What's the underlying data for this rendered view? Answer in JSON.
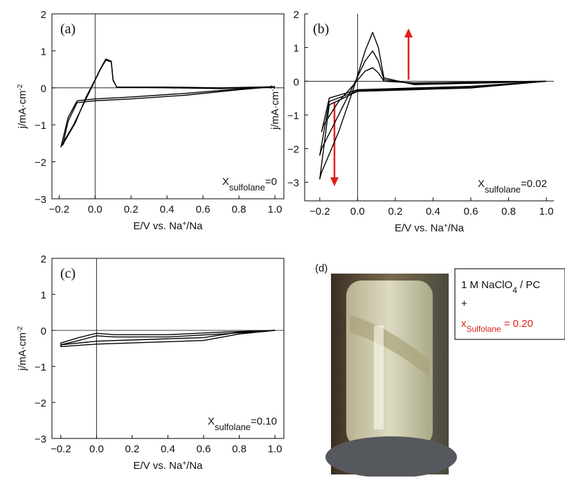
{
  "chart_data": [
    {
      "type": "line",
      "panel_label": "(a)",
      "annotation": [
        "X",
        "sulfolane",
        "=0"
      ],
      "xlabel": [
        "E/V vs. Na",
        "+",
        "/Na"
      ],
      "ylabel": [
        "j/mA·cm",
        "-2"
      ],
      "frame": true,
      "xlim": [
        -0.24,
        1.05
      ],
      "ylim": [
        -3,
        2
      ],
      "xticks": [
        {
          "value": -0.2,
          "label": "−0.2"
        },
        {
          "value": 0,
          "label": "0.0"
        },
        0.2,
        0.4,
        0.6,
        0.8,
        {
          "value": 1,
          "label": "1.0"
        }
      ],
      "yticks": [
        {
          "value": -3,
          "label": "−3"
        },
        {
          "value": -2,
          "label": "−2"
        },
        {
          "value": -1,
          "label": "−1"
        },
        0,
        1,
        2
      ],
      "series": [
        {
          "color": "#000000",
          "x": [
            1.0,
            0.8,
            0.5,
            0.2,
            0.0,
            -0.1,
            -0.15,
            -0.19,
            -0.18,
            -0.12,
            -0.05,
            0.0,
            0.03,
            0.06,
            0.09,
            0.1,
            0.12,
            0.4,
            0.7,
            1.0
          ],
          "values": [
            0.03,
            -0.03,
            -0.15,
            -0.25,
            -0.3,
            -0.35,
            -0.8,
            -1.6,
            -1.5,
            -1.0,
            -0.3,
            0.2,
            0.5,
            0.75,
            0.7,
            0.2,
            0.02,
            0.02,
            0.0,
            0.03
          ]
        },
        {
          "color": "#000000",
          "x": [
            1.0,
            0.8,
            0.5,
            0.2,
            0.0,
            -0.1,
            -0.15,
            -0.18,
            -0.17,
            -0.11,
            -0.05,
            0.0,
            0.03,
            0.06,
            0.09,
            0.1,
            0.12,
            0.4,
            0.7,
            1.0
          ],
          "values": [
            0.03,
            -0.05,
            -0.2,
            -0.3,
            -0.35,
            -0.4,
            -0.9,
            -1.55,
            -1.45,
            -0.95,
            -0.25,
            0.22,
            0.52,
            0.78,
            0.72,
            0.22,
            0.02,
            0.0,
            -0.02,
            0.03
          ]
        }
      ]
    },
    {
      "type": "line",
      "panel_label": "(b)",
      "annotation": [
        "X",
        "sulfolane",
        "=0.02"
      ],
      "xlabel": [
        "E/V vs. Na",
        "+",
        "/Na"
      ],
      "ylabel": [
        "j/mA·cm",
        "-2"
      ],
      "frame": false,
      "xlim": [
        -0.28,
        1.04
      ],
      "ylim": [
        -3.55,
        2
      ],
      "xticks": [
        {
          "value": -0.2,
          "label": "−0.2"
        },
        {
          "value": 0,
          "label": "0.0"
        },
        0.2,
        0.4,
        0.6,
        0.8,
        {
          "value": 1,
          "label": "1.0"
        }
      ],
      "yticks": [
        {
          "value": -3,
          "label": "−3"
        },
        {
          "value": -2,
          "label": "−2"
        },
        {
          "value": -1,
          "label": "−1"
        },
        0,
        1,
        2
      ],
      "series": [
        {
          "color": "#000000",
          "x": [
            1.0,
            0.6,
            0.3,
            0.0,
            -0.15,
            -0.19,
            -0.18,
            -0.1,
            -0.02,
            0.04,
            0.08,
            0.11,
            0.14,
            0.3,
            0.7,
            1.0
          ],
          "values": [
            0.0,
            -0.15,
            -0.2,
            -0.25,
            -0.5,
            -1.5,
            -1.3,
            -0.6,
            -0.1,
            0.3,
            0.4,
            0.25,
            0.0,
            -0.05,
            -0.02,
            0.0
          ]
        },
        {
          "color": "#000000",
          "x": [
            1.0,
            0.6,
            0.3,
            0.0,
            -0.15,
            -0.2,
            -0.19,
            -0.1,
            -0.02,
            0.04,
            0.08,
            0.11,
            0.14,
            0.3,
            0.7,
            1.0
          ],
          "values": [
            0.0,
            -0.18,
            -0.22,
            -0.28,
            -0.6,
            -2.2,
            -2.0,
            -1.0,
            -0.1,
            0.6,
            0.9,
            0.6,
            0.05,
            -0.08,
            -0.04,
            0.0
          ]
        },
        {
          "color": "#000000",
          "x": [
            1.0,
            0.6,
            0.3,
            0.0,
            -0.15,
            -0.2,
            -0.19,
            -0.1,
            -0.02,
            0.04,
            0.08,
            0.11,
            0.14,
            0.3,
            0.7,
            1.0
          ],
          "values": [
            0.0,
            -0.2,
            -0.25,
            -0.3,
            -0.7,
            -2.9,
            -2.7,
            -1.5,
            -0.2,
            0.9,
            1.45,
            1.0,
            0.1,
            -0.1,
            -0.05,
            0.0
          ]
        }
      ]
    },
    {
      "type": "line",
      "panel_label": "(c)",
      "annotation": [
        "X",
        "sulfolane",
        "=0.10"
      ],
      "xlabel": [
        "E/V vs. Na",
        "+",
        "/Na"
      ],
      "ylabel": [
        "j/mA·cm",
        "-2"
      ],
      "frame": true,
      "xlim": [
        -0.25,
        1.05
      ],
      "ylim": [
        -3,
        2
      ],
      "xticks": [
        {
          "value": -0.2,
          "label": "−0.2"
        },
        {
          "value": 0,
          "label": "0.0"
        },
        0.2,
        0.4,
        0.6,
        0.8,
        {
          "value": 1,
          "label": "1.0"
        }
      ],
      "yticks": [
        {
          "value": -3,
          "label": "−3"
        },
        {
          "value": -2,
          "label": "−2"
        },
        {
          "value": -1,
          "label": "−1"
        },
        0,
        1,
        2
      ],
      "series": [
        {
          "color": "#000000",
          "x": [
            1.0,
            0.8,
            0.6,
            0.3,
            0.0,
            -0.2,
            -0.2,
            -0.1,
            0.0,
            0.1,
            0.4,
            0.7,
            1.0
          ],
          "values": [
            0.0,
            -0.05,
            -0.2,
            -0.25,
            -0.3,
            -0.4,
            -0.35,
            -0.2,
            -0.08,
            -0.12,
            -0.12,
            -0.05,
            0.0
          ]
        },
        {
          "color": "#000000",
          "x": [
            1.0,
            0.8,
            0.6,
            0.3,
            0.0,
            -0.2,
            -0.2,
            -0.1,
            0.0,
            0.1,
            0.4,
            0.7,
            1.0
          ],
          "values": [
            0.0,
            -0.1,
            -0.28,
            -0.33,
            -0.38,
            -0.45,
            -0.4,
            -0.28,
            -0.15,
            -0.18,
            -0.18,
            -0.1,
            0.0
          ]
        }
      ]
    }
  ],
  "photo_panel": {
    "label": "(d)",
    "line1": [
      "1 M NaClO",
      "4",
      " / PC"
    ],
    "line2": "+",
    "line3": [
      "x",
      "Sulfolane",
      " = 0.20"
    ]
  }
}
